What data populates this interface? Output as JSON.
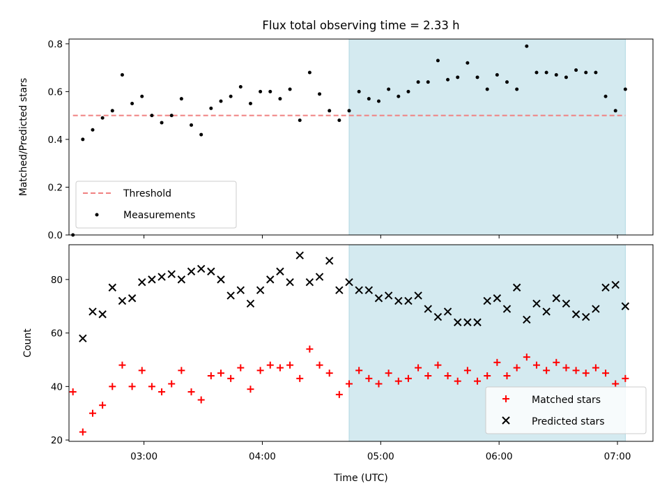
{
  "chart_data": [
    {
      "type": "scatter",
      "title": "Flux total observing time = 2.33 h",
      "xlabel": "",
      "ylabel": "Matched/Predicted stars",
      "ylim": [
        0.0,
        0.82
      ],
      "yticks": [
        0.0,
        0.2,
        0.4,
        0.6,
        0.8
      ],
      "ytick_labels": [
        "0.0",
        "0.2",
        "0.4",
        "0.6",
        "0.8"
      ],
      "xlim": [
        "02:22",
        "07:18"
      ],
      "xticks": [
        "03:00",
        "04:00",
        "05:00",
        "06:00",
        "07:00"
      ],
      "highlight_span": {
        "start": "04:44",
        "end": "07:04",
        "color": "#d4eaf0"
      },
      "legend_position": "lower-left",
      "series": [
        {
          "name": "Threshold",
          "kind": "dashed-line",
          "color": "#f08080",
          "x": [
            "02:24",
            "07:04"
          ],
          "y": [
            0.5,
            0.5
          ]
        },
        {
          "name": "Measurements",
          "kind": "dots",
          "color": "#000000",
          "x": [
            "02:24",
            "02:29",
            "02:34",
            "02:39",
            "02:44",
            "02:49",
            "02:54",
            "02:59",
            "03:04",
            "03:09",
            "03:14",
            "03:19",
            "03:24",
            "03:29",
            "03:34",
            "03:39",
            "03:44",
            "03:49",
            "03:54",
            "03:59",
            "04:04",
            "04:09",
            "04:14",
            "04:19",
            "04:24",
            "04:29",
            "04:34",
            "04:39",
            "04:44",
            "04:49",
            "04:54",
            "04:59",
            "05:04",
            "05:09",
            "05:14",
            "05:19",
            "05:24",
            "05:29",
            "05:34",
            "05:39",
            "05:44",
            "05:49",
            "05:54",
            "05:59",
            "06:04",
            "06:09",
            "06:14",
            "06:19",
            "06:24",
            "06:29",
            "06:34",
            "06:39",
            "06:44",
            "06:49",
            "06:54",
            "06:59",
            "07:04"
          ],
          "y": [
            0.0,
            0.4,
            0.44,
            0.49,
            0.52,
            0.67,
            0.55,
            0.58,
            0.5,
            0.47,
            0.5,
            0.57,
            0.46,
            0.42,
            0.53,
            0.56,
            0.58,
            0.62,
            0.55,
            0.6,
            0.6,
            0.57,
            0.61,
            0.48,
            0.68,
            0.59,
            0.52,
            0.48,
            0.52,
            0.6,
            0.57,
            0.56,
            0.61,
            0.58,
            0.6,
            0.64,
            0.64,
            0.73,
            0.65,
            0.66,
            0.72,
            0.66,
            0.61,
            0.67,
            0.64,
            0.61,
            0.79,
            0.68,
            0.68,
            0.67,
            0.66,
            0.69,
            0.68,
            0.68,
            0.58,
            0.52,
            0.61
          ]
        }
      ]
    },
    {
      "type": "scatter",
      "title": "",
      "xlabel": "Time (UTC)",
      "ylabel": "Count",
      "ylim": [
        19.5,
        93
      ],
      "yticks": [
        20,
        40,
        60,
        80
      ],
      "ytick_labels": [
        "20",
        "40",
        "60",
        "80"
      ],
      "xlim": [
        "02:22",
        "07:18"
      ],
      "xticks": [
        "03:00",
        "04:00",
        "05:00",
        "06:00",
        "07:00"
      ],
      "xtick_labels": [
        "03:00",
        "04:00",
        "05:00",
        "06:00",
        "07:00"
      ],
      "highlight_span": {
        "start": "04:44",
        "end": "07:04",
        "color": "#d4eaf0"
      },
      "legend_position": "lower-right",
      "series": [
        {
          "name": "Matched stars",
          "marker": "+",
          "color": "#ff0000",
          "x": [
            "02:24",
            "02:29",
            "02:34",
            "02:39",
            "02:44",
            "02:49",
            "02:54",
            "02:59",
            "03:04",
            "03:09",
            "03:14",
            "03:19",
            "03:24",
            "03:29",
            "03:34",
            "03:39",
            "03:44",
            "03:49",
            "03:54",
            "03:59",
            "04:04",
            "04:09",
            "04:14",
            "04:19",
            "04:24",
            "04:29",
            "04:34",
            "04:39",
            "04:44",
            "04:49",
            "04:54",
            "04:59",
            "05:04",
            "05:09",
            "05:14",
            "05:19",
            "05:24",
            "05:29",
            "05:34",
            "05:39",
            "05:44",
            "05:49",
            "05:54",
            "05:59",
            "06:04",
            "06:09",
            "06:14",
            "06:19",
            "06:24",
            "06:29",
            "06:34",
            "06:39",
            "06:44",
            "06:49",
            "06:54",
            "06:59",
            "07:04"
          ],
          "y": [
            38,
            23,
            30,
            33,
            40,
            48,
            40,
            46,
            40,
            38,
            41,
            46,
            38,
            35,
            44,
            45,
            43,
            47,
            39,
            46,
            48,
            47,
            48,
            43,
            54,
            48,
            45,
            37,
            41,
            46,
            43,
            41,
            45,
            42,
            43,
            47,
            44,
            48,
            44,
            42,
            46,
            42,
            44,
            49,
            44,
            47,
            51,
            48,
            46,
            49,
            47,
            46,
            45,
            47,
            45,
            41,
            43
          ]
        },
        {
          "name": "Predicted stars",
          "marker": "x",
          "color": "#000000",
          "x": [
            "02:29",
            "02:34",
            "02:39",
            "02:44",
            "02:49",
            "02:54",
            "02:59",
            "03:04",
            "03:09",
            "03:14",
            "03:19",
            "03:24",
            "03:29",
            "03:34",
            "03:39",
            "03:44",
            "03:49",
            "03:54",
            "03:59",
            "04:04",
            "04:09",
            "04:14",
            "04:19",
            "04:24",
            "04:29",
            "04:34",
            "04:39",
            "04:44",
            "04:49",
            "04:54",
            "04:59",
            "05:04",
            "05:09",
            "05:14",
            "05:19",
            "05:24",
            "05:29",
            "05:34",
            "05:39",
            "05:44",
            "05:49",
            "05:54",
            "05:59",
            "06:04",
            "06:09",
            "06:14",
            "06:19",
            "06:24",
            "06:29",
            "06:34",
            "06:39",
            "06:44",
            "06:49",
            "06:54",
            "06:59",
            "07:04"
          ],
          "y": [
            58,
            68,
            67,
            77,
            72,
            73,
            79,
            80,
            81,
            82,
            80,
            83,
            84,
            83,
            80,
            74,
            76,
            71,
            76,
            80,
            83,
            79,
            89,
            79,
            81,
            87,
            76,
            79,
            76,
            76,
            73,
            74,
            72,
            72,
            74,
            69,
            66,
            68,
            64,
            64,
            64,
            72,
            73,
            69,
            77,
            65,
            71,
            68,
            73,
            71,
            67,
            66,
            69,
            77,
            78,
            70
          ]
        }
      ]
    }
  ]
}
